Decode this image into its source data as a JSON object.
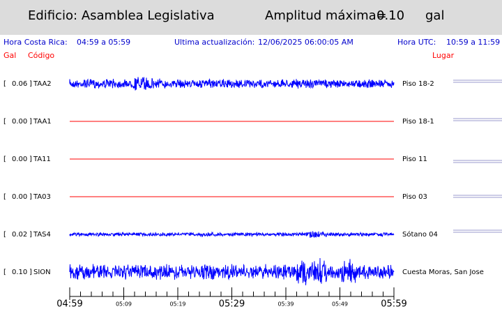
{
  "header": {
    "title": "Edificio: Asamblea Legislativa",
    "amplitude_label": "Amplitud máxima=",
    "amplitude_value": "0.10",
    "amplitude_unit": "gal"
  },
  "info": {
    "local_label": "Hora Costa Rica:",
    "local_range": "04:59 a 05:59",
    "update_label": "Ultima actualización:",
    "update_value": "12/06/2025 06:00:05 AM",
    "utc_label": "Hora UTC:",
    "utc_range": "10:59 a 11:59"
  },
  "columns": {
    "gal": "Gal",
    "code": "Código",
    "place": "Lugar"
  },
  "channels": [
    {
      "gal": "0.06",
      "code": "TAA2",
      "place": "Piso 18-2",
      "color": "#0000ff"
    },
    {
      "gal": "0.00",
      "code": "TAA1",
      "place": "Piso 18-1",
      "color": "#ff0000"
    },
    {
      "gal": "0.00",
      "code": "TA11",
      "place": "Piso 11",
      "color": "#ff0000"
    },
    {
      "gal": "0.00",
      "code": "TA03",
      "place": "Piso 03",
      "color": "#ff0000"
    },
    {
      "gal": "0.02",
      "code": "TAS4",
      "place": "Sótano 04",
      "color": "#0000ff"
    },
    {
      "gal": "0.10",
      "code": "SION",
      "place": "Cuesta Moras, San Jose",
      "color": "#0000ff"
    }
  ],
  "time_axis": [
    "04:59",
    "05:09",
    "05:19",
    "05:29",
    "05:39",
    "05:49",
    "05:59"
  ]
}
